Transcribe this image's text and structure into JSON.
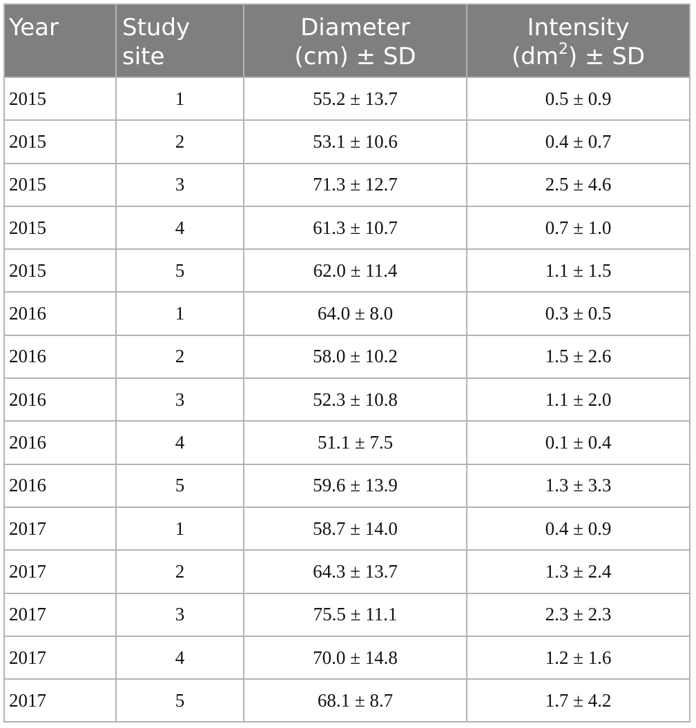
{
  "table": {
    "headers": {
      "year": "Year",
      "site": "Study site",
      "diameter_line1": "Diameter",
      "diameter_line2": "(cm) ± SD",
      "intensity_line1": "Intensity",
      "intensity_unit": "(dm",
      "intensity_sup": "2",
      "intensity_tail": ") ± SD"
    },
    "rows": [
      {
        "year": "2015",
        "site": "1",
        "diameter": "55.2 ± 13.7",
        "intensity": "0.5 ± 0.9"
      },
      {
        "year": "2015",
        "site": "2",
        "diameter": "53.1 ± 10.6",
        "intensity": "0.4 ± 0.7"
      },
      {
        "year": "2015",
        "site": "3",
        "diameter": "71.3 ± 12.7",
        "intensity": "2.5 ± 4.6"
      },
      {
        "year": "2015",
        "site": "4",
        "diameter": "61.3 ± 10.7",
        "intensity": "0.7 ± 1.0"
      },
      {
        "year": "2015",
        "site": "5",
        "diameter": "62.0 ± 11.4",
        "intensity": "1.1 ± 1.5"
      },
      {
        "year": "2016",
        "site": "1",
        "diameter": "64.0 ± 8.0",
        "intensity": "0.3 ± 0.5"
      },
      {
        "year": "2016",
        "site": "2",
        "diameter": "58.0 ± 10.2",
        "intensity": "1.5 ± 2.6"
      },
      {
        "year": "2016",
        "site": "3",
        "diameter": "52.3 ± 10.8",
        "intensity": "1.1 ± 2.0"
      },
      {
        "year": "2016",
        "site": "4",
        "diameter": "51.1 ± 7.5",
        "intensity": "0.1 ± 0.4"
      },
      {
        "year": "2016",
        "site": "5",
        "diameter": "59.6 ± 13.9",
        "intensity": "1.3 ± 3.3"
      },
      {
        "year": "2017",
        "site": "1",
        "diameter": "58.7 ± 14.0",
        "intensity": "0.4 ± 0.9"
      },
      {
        "year": "2017",
        "site": "2",
        "diameter": "64.3 ± 13.7",
        "intensity": "1.3 ± 2.4"
      },
      {
        "year": "2017",
        "site": "3",
        "diameter": "75.5 ± 11.1",
        "intensity": "2.3 ± 2.3"
      },
      {
        "year": "2017",
        "site": "4",
        "diameter": "70.0 ± 14.8",
        "intensity": "1.2 ± 1.6"
      },
      {
        "year": "2017",
        "site": "5",
        "diameter": "68.1 ± 8.7",
        "intensity": "1.7 ± 4.2"
      }
    ]
  },
  "colors": {
    "header_background": "#7f7f7f",
    "header_text": "#ffffff",
    "grid_lines": "#b3b3b3"
  }
}
